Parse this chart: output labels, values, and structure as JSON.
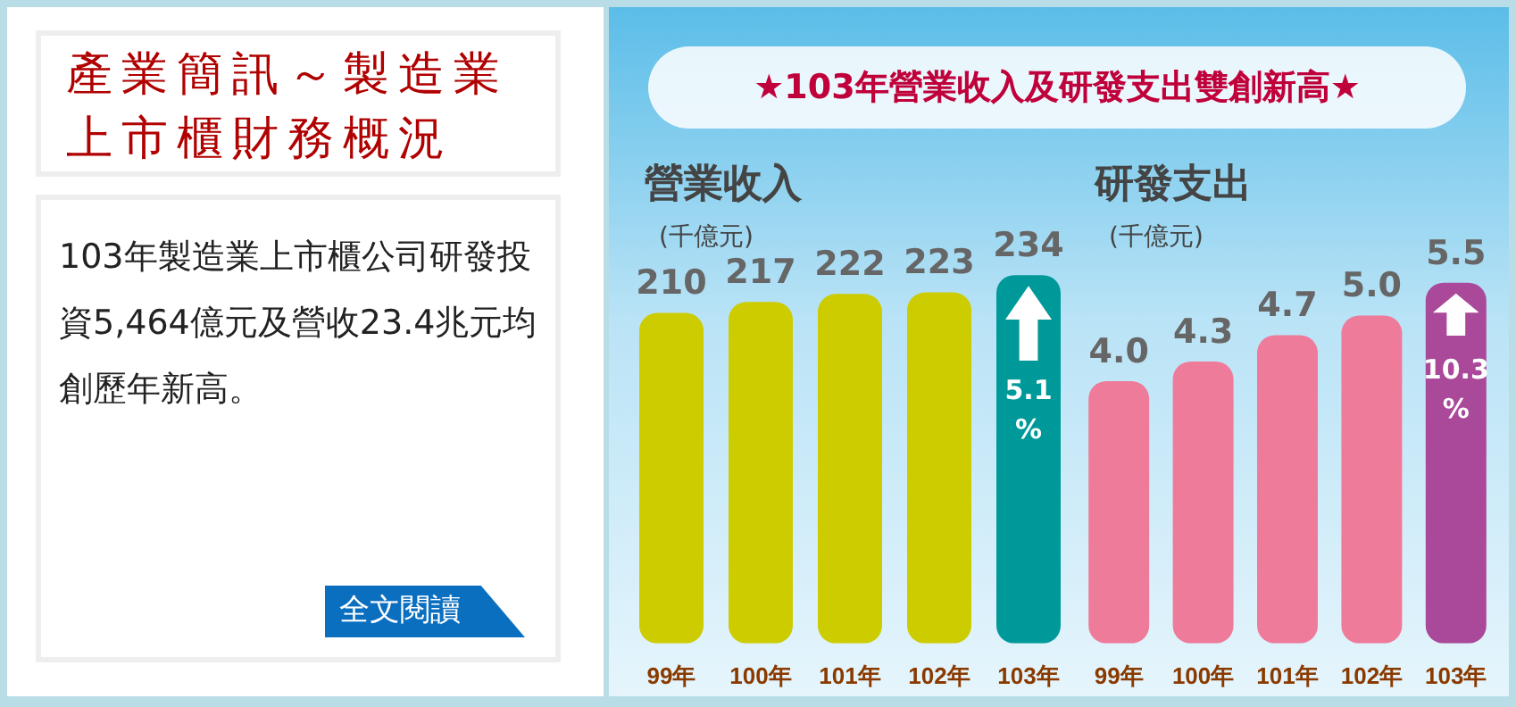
{
  "chart_data": [
    {
      "type": "other",
      "title": "產業簡訊～製造業上市櫃財務概況",
      "annotations": [
        "103年製造業上市櫃公司研發投資5,464億元及營收23.4兆元均創歷年新高。",
        "全文閱讀"
      ]
    },
    {
      "type": "bar",
      "title": "營業收入",
      "subtitle": "(千億元)",
      "categories": [
        "99年",
        "100年",
        "101年",
        "102年",
        "103年"
      ],
      "values": [
        210,
        217,
        222,
        223,
        234
      ],
      "colors": [
        "#cccc00",
        "#cccc00",
        "#cccc00",
        "#cccc00",
        "#009999"
      ],
      "tick_labels": "x",
      "data_labels": true,
      "annotations": [
        "★103年營業收入及研發支出雙創新高★",
        "5.1 %"
      ]
    },
    {
      "type": "bar",
      "title": "研發支出",
      "subtitle": "(千億元)",
      "categories": [
        "99年",
        "100年",
        "101年",
        "102年",
        "103年"
      ],
      "values": [
        4.0,
        4.3,
        4.7,
        5.0,
        5.5
      ],
      "value_labels": [
        "4.0",
        "4.3",
        "4.7",
        "5.0",
        "5.5"
      ],
      "colors": [
        "#ee7b9a",
        "#ee7b9a",
        "#ee7b9a",
        "#ee7b9a",
        "#aa4899"
      ],
      "tick_labels": "x",
      "annotations": [
        "10.3 %"
      ]
    }
  ]
}
